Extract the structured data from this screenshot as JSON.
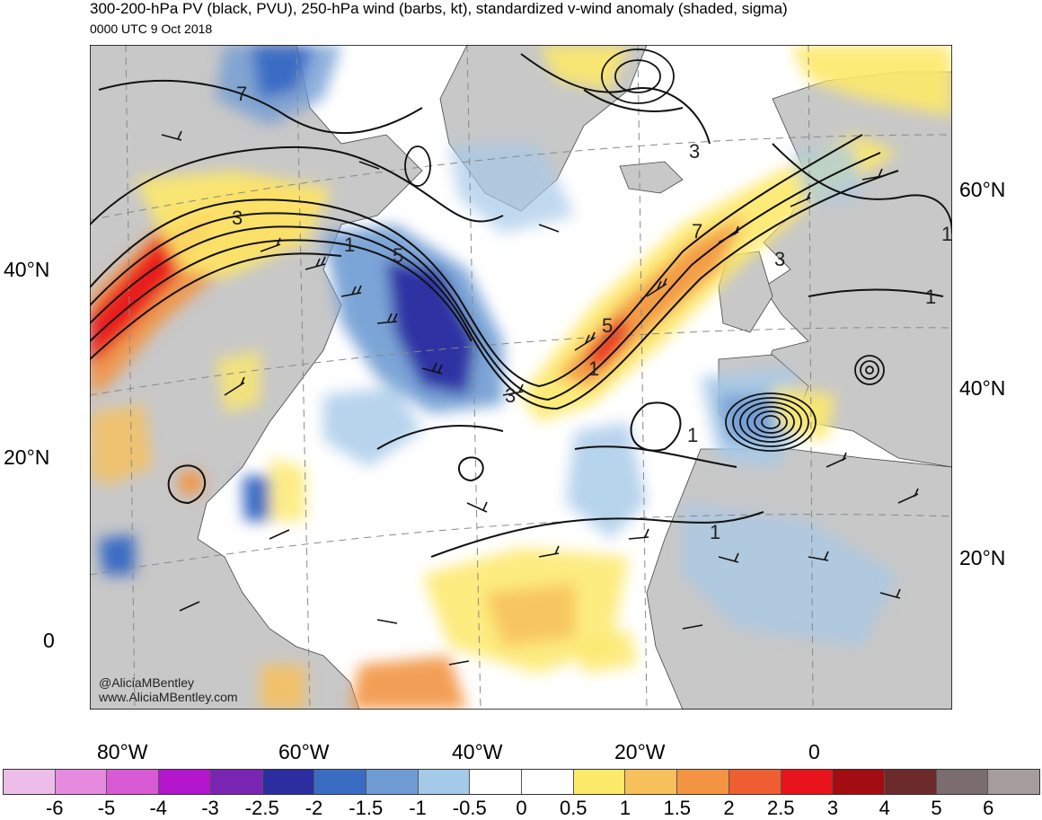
{
  "header": {
    "title": "300-200-hPa PV (black, PVU), 250-hPa wind (barbs, kt), standardized v-wind anomaly (shaded, sigma)",
    "subtitle": "0000 UTC 9 Oct 2018"
  },
  "axes": {
    "left_lat_labels": [
      "40°N",
      "20°N",
      "0"
    ],
    "right_lat_labels": [
      "60°N",
      "40°N",
      "20°N"
    ],
    "lon_labels": [
      "80°W",
      "60°W",
      "40°W",
      "20°W",
      "0"
    ]
  },
  "pv_contour_labels": [
    "3",
    "1",
    "5",
    "7",
    "3",
    "5",
    "1",
    "7",
    "3",
    "1",
    "1",
    "1",
    "1",
    "3"
  ],
  "credits": {
    "handle": "@AliciaMBentley",
    "website": "www.AliciaMBentley.com"
  },
  "colorbar": {
    "colors": [
      "#ecbde8",
      "#e68ae0",
      "#d85ad4",
      "#b316cc",
      "#7a24b3",
      "#2b2da0",
      "#3b6cc4",
      "#6f9bd3",
      "#a5c9e8",
      "#ffffff",
      "#ffffff",
      "#fde96a",
      "#f8c05a",
      "#f29442",
      "#ef5e31",
      "#e9141b",
      "#a30c10",
      "#6d2a2a",
      "#7b6d6d",
      "#a59c9c"
    ],
    "tick_labels": [
      "-6",
      "-5",
      "-4",
      "-3",
      "-2.5",
      "-2",
      "-1.5",
      "-1",
      "-0.5",
      "0",
      "0.5",
      "1",
      "1.5",
      "2",
      "2.5",
      "3",
      "4",
      "5",
      "6"
    ]
  }
}
